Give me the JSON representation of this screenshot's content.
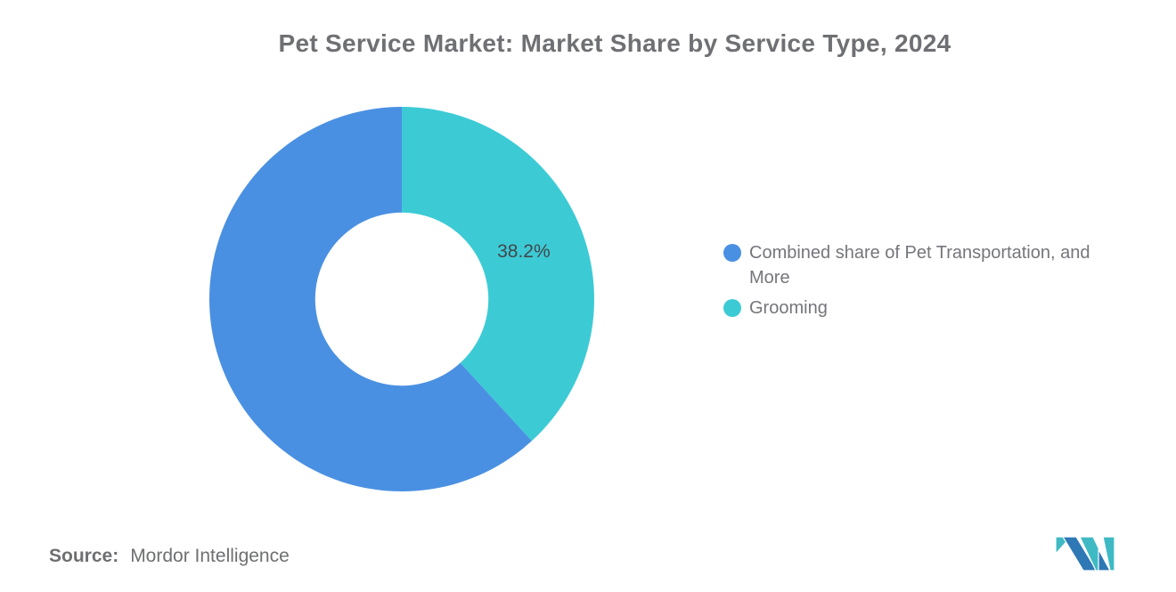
{
  "header": {
    "title": "Pet Service Market: Market Share by Service Type, 2024"
  },
  "chart_data": {
    "type": "pie",
    "subtype": "donut",
    "title": "Pet Service Market: Market Share by Service Type, 2024",
    "slices": [
      {
        "label": "Grooming",
        "value": 38.2,
        "color": "#3CCBD5",
        "data_label": "38.2%"
      },
      {
        "label": "Combined share of Pet Transportation, and More",
        "value": 61.8,
        "color": "#4A90E2",
        "data_label": null
      }
    ],
    "start_angle_deg": 0,
    "direction": "clockwise",
    "inner_radius_ratio": 0.45,
    "data_label_radius_ratio": 0.68,
    "data_label_color": "#43464B",
    "legend_position": "right",
    "grid": false
  },
  "legend": {
    "items": [
      {
        "label": "Combined share of Pet Transportation, and More",
        "color": "#4A90E2"
      },
      {
        "label": "Grooming",
        "color": "#3CCBD5"
      }
    ]
  },
  "footer": {
    "source_prefix": "Source:",
    "source_text": "Mordor Intelligence"
  },
  "logo": {
    "name": "mordor-intelligence-logo",
    "teal": "#3FBAC4",
    "blue": "#2E78B5"
  }
}
